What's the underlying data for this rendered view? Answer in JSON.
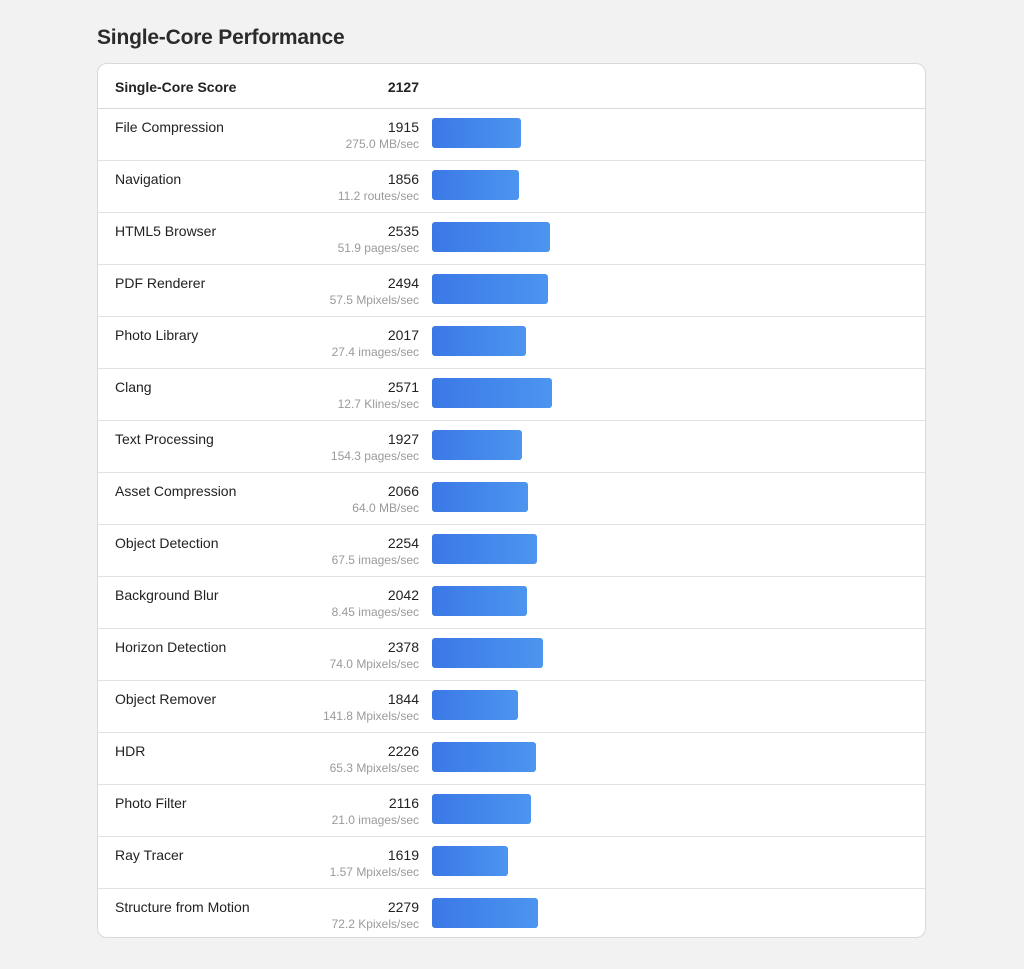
{
  "page": {
    "title": "Single-Core Performance"
  },
  "summary": {
    "label": "Single-Core Score",
    "score": "2127"
  },
  "colors": {
    "bar_start": "#3b78e7",
    "bar_end": "#4c95ef"
  },
  "bar_scale_max": 2571,
  "benchmarks": [
    {
      "name": "File Compression",
      "score": "1915",
      "rate": "275.0 MB/sec"
    },
    {
      "name": "Navigation",
      "score": "1856",
      "rate": "11.2 routes/sec"
    },
    {
      "name": "HTML5 Browser",
      "score": "2535",
      "rate": "51.9 pages/sec"
    },
    {
      "name": "PDF Renderer",
      "score": "2494",
      "rate": "57.5 Mpixels/sec"
    },
    {
      "name": "Photo Library",
      "score": "2017",
      "rate": "27.4 images/sec"
    },
    {
      "name": "Clang",
      "score": "2571",
      "rate": "12.7 Klines/sec"
    },
    {
      "name": "Text Processing",
      "score": "1927",
      "rate": "154.3 pages/sec"
    },
    {
      "name": "Asset Compression",
      "score": "2066",
      "rate": "64.0 MB/sec"
    },
    {
      "name": "Object Detection",
      "score": "2254",
      "rate": "67.5 images/sec"
    },
    {
      "name": "Background Blur",
      "score": "2042",
      "rate": "8.45 images/sec"
    },
    {
      "name": "Horizon Detection",
      "score": "2378",
      "rate": "74.0 Mpixels/sec"
    },
    {
      "name": "Object Remover",
      "score": "1844",
      "rate": "141.8 Mpixels/sec"
    },
    {
      "name": "HDR",
      "score": "2226",
      "rate": "65.3 Mpixels/sec"
    },
    {
      "name": "Photo Filter",
      "score": "2116",
      "rate": "21.0 images/sec"
    },
    {
      "name": "Ray Tracer",
      "score": "1619",
      "rate": "1.57 Mpixels/sec"
    },
    {
      "name": "Structure from Motion",
      "score": "2279",
      "rate": "72.2 Kpixels/sec"
    }
  ]
}
